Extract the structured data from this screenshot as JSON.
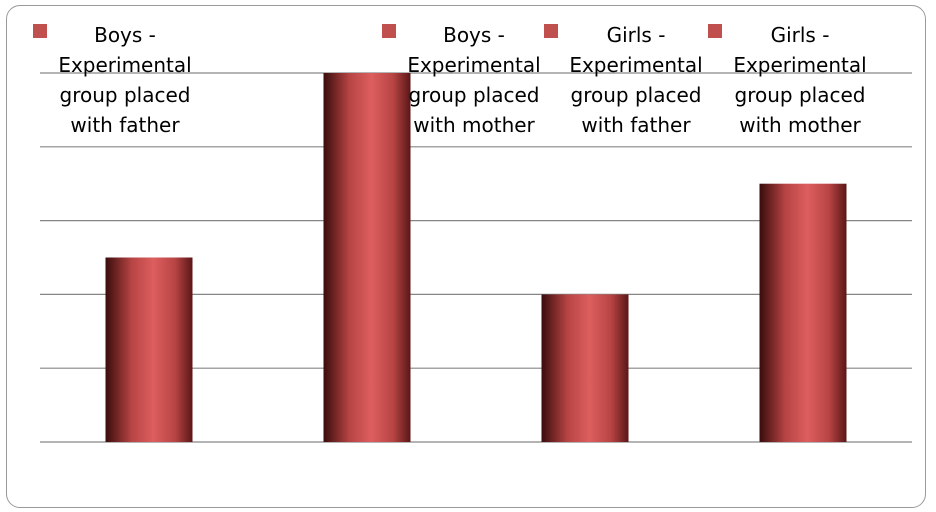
{
  "chart_data": {
    "type": "bar",
    "categories": [
      "Boys - Experimental group placed with father",
      "Boys - Experimental group placed with mother",
      "Girls - Experimental group placed with father",
      "Girls - Experimental group placed with mother"
    ],
    "values": [
      2.5,
      5.0,
      2.0,
      3.5
    ],
    "ylim": [
      0,
      5
    ],
    "grid": true,
    "legend_position": "top",
    "colors": {
      "bar_light": "#dd5e5e",
      "bar_mid": "#b84444",
      "bar_dark": "#3a0c0c",
      "swatch": "#c0504d",
      "gridline": "#868686"
    }
  },
  "legend": [
    {
      "lines": [
        "Boys -",
        "Experimental",
        "group placed",
        "with father"
      ]
    },
    {
      "lines": [
        "Boys -",
        "Experimental",
        "group placed",
        "with mother"
      ]
    },
    {
      "lines": [
        "Girls -",
        "Experimental",
        "group placed",
        "with father"
      ]
    },
    {
      "lines": [
        "Girls -",
        "Experimental",
        "group placed",
        "with mother"
      ]
    }
  ]
}
